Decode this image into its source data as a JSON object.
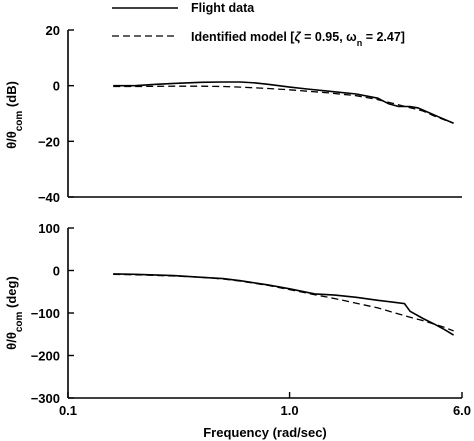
{
  "chart_data": [
    {
      "type": "line",
      "title": "",
      "xlabel": "",
      "ylabel": "θ/θcom (dB)",
      "ylabel_main": "θ/θ",
      "ylabel_sub": "com",
      "ylabel_unit": " (dB)",
      "xscale": "log",
      "xlim": [
        0.1,
        6.0
      ],
      "ylim": [
        -40,
        20
      ],
      "yticks": [
        20,
        0,
        -20,
        -40
      ],
      "ytick_labels": [
        "20",
        "0",
        "−20",
        "−40"
      ],
      "grid": false,
      "series": [
        {
          "name": "Flight data",
          "style": "solid",
          "x": [
            0.16,
            0.2,
            0.25,
            0.3,
            0.4,
            0.5,
            0.6,
            0.7,
            0.8,
            1.0,
            1.2,
            1.5,
            2.0,
            2.5,
            2.8,
            3.1,
            3.5,
            3.8,
            4.2,
            4.8,
            5.5
          ],
          "y": [
            0.0,
            0.0,
            0.5,
            0.8,
            1.2,
            1.3,
            1.3,
            1.0,
            0.5,
            -0.5,
            -1.2,
            -2.0,
            -3.0,
            -4.5,
            -6.5,
            -7.5,
            -7.5,
            -8.0,
            -9.5,
            -11.5,
            -13.5
          ]
        },
        {
          "name": "Identified model",
          "style": "dashed",
          "x": [
            0.16,
            0.2,
            0.3,
            0.4,
            0.5,
            0.6,
            0.8,
            1.0,
            1.5,
            2.0,
            2.5,
            3.0,
            3.5,
            4.0,
            4.5,
            5.0,
            5.5
          ],
          "y": [
            -0.3,
            -0.3,
            -0.2,
            -0.2,
            -0.3,
            -0.5,
            -1.0,
            -1.5,
            -2.6,
            -3.6,
            -5.0,
            -6.6,
            -7.9,
            -9.1,
            -10.9,
            -12.3,
            -13.5
          ]
        }
      ]
    },
    {
      "type": "line",
      "title": "",
      "xlabel": "Frequency (rad/sec)",
      "ylabel": "θ/θcom (deg)",
      "ylabel_main": "θ/θ",
      "ylabel_sub": "com",
      "ylabel_unit": " (deg)",
      "xscale": "log",
      "xlim": [
        0.1,
        6.0
      ],
      "ylim": [
        -300,
        100
      ],
      "xticks": [
        0.1,
        1.0,
        6.0
      ],
      "xtick_labels": [
        "0.1",
        "1.0",
        "6.0"
      ],
      "yticks": [
        100,
        0,
        -100,
        -200,
        -300
      ],
      "ytick_labels": [
        "100",
        "0",
        "−100",
        "−200",
        "−300"
      ],
      "grid": false,
      "series": [
        {
          "name": "Flight data",
          "style": "solid",
          "x": [
            0.16,
            0.2,
            0.3,
            0.4,
            0.5,
            0.6,
            0.8,
            1.0,
            1.3,
            1.6,
            2.0,
            2.5,
            3.0,
            3.3,
            3.5,
            4.0,
            4.5,
            5.0,
            5.5
          ],
          "y": [
            -8,
            -9,
            -12,
            -16,
            -19,
            -24,
            -34,
            -43,
            -55,
            -58,
            -63,
            -70,
            -75,
            -78,
            -96,
            -113,
            -126,
            -139,
            -152
          ]
        },
        {
          "name": "Identified model",
          "style": "dashed",
          "x": [
            0.16,
            0.2,
            0.3,
            0.4,
            0.5,
            0.6,
            0.8,
            1.0,
            1.3,
            1.6,
            2.0,
            2.5,
            3.0,
            3.5,
            4.0,
            4.5,
            5.0,
            5.5
          ],
          "y": [
            -9,
            -10,
            -13,
            -16,
            -20,
            -25,
            -35,
            -45,
            -57,
            -66,
            -77,
            -88,
            -100,
            -110,
            -118,
            -126,
            -134,
            -142
          ]
        }
      ]
    }
  ],
  "legend": {
    "placement": "top",
    "entries": [
      {
        "label": "Flight data",
        "style": "solid"
      },
      {
        "label_prefix": "Identified model [",
        "zeta_symbol": "ζ",
        "zeta_value": " = 0.95, ",
        "omega_symbol": "ω",
        "omega_sub": "n",
        "omega_value": " = 2.47]",
        "style": "dashed"
      }
    ]
  }
}
